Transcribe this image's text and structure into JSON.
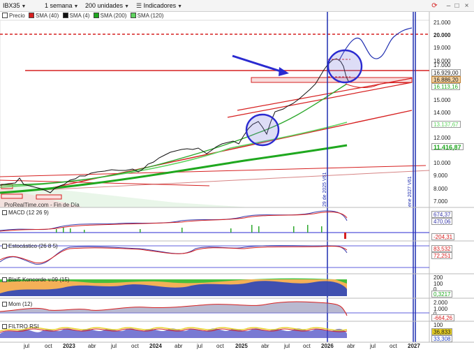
{
  "toolbar": {
    "symbol": "IBX35",
    "period": "1 semana",
    "units": "200 unidades",
    "indicators": "Indicadores"
  },
  "legend": {
    "price": "Precio",
    "sma40": "SMA (40)",
    "sma4": "SMA (4)",
    "sma200": "SMA (200)",
    "sma120": "SMA (120)"
  },
  "price_axis": {
    "ticks": [
      "21.000",
      "20.000",
      "19.000",
      "18.000",
      "17.000",
      "16.929,00",
      "16.886,20",
      "16.113,16",
      "15.000",
      "14.000",
      "13.137,67",
      "12.000",
      "11.416,87",
      "10.000",
      "9.000",
      "8.000",
      "7.000"
    ]
  },
  "source": "ProRealTime.com - Fin de Día",
  "vlines": {
    "v1": "29 de 2025 V61",
    "v2": "ene 2027 V61"
  },
  "panels": {
    "macd": {
      "title": "MACD (12 26 9)",
      "ticks": [
        "674,37",
        "470,06",
        "-204,31"
      ]
    },
    "stoch": {
      "title": "Estocástico (26 8 5)",
      "ticks": [
        "83,532",
        "72,251"
      ]
    },
    "koncorde": {
      "title": "Blai5 Koncorde v.09 (15)",
      "ticks": [
        "200",
        "100",
        "0",
        "0,3217"
      ]
    },
    "mom": {
      "title": "Mom (12)",
      "ticks": [
        "2.000",
        "1.000",
        "0",
        "-664,26"
      ]
    },
    "rsi": {
      "title": "FILTRO RSI",
      "ticks": [
        "100",
        "36,833",
        "33,308"
      ]
    }
  },
  "xaxis": [
    {
      "label": "jul",
      "bold": false
    },
    {
      "label": "oct",
      "bold": false
    },
    {
      "label": "2023",
      "bold": true
    },
    {
      "label": "abr",
      "bold": false
    },
    {
      "label": "jul",
      "bold": false
    },
    {
      "label": "oct",
      "bold": false
    },
    {
      "label": "2024",
      "bold": true
    },
    {
      "label": "abr",
      "bold": false
    },
    {
      "label": "jul",
      "bold": false
    },
    {
      "label": "oct",
      "bold": false
    },
    {
      "label": "2025",
      "bold": true
    },
    {
      "label": "abr",
      "bold": false
    },
    {
      "label": "jul",
      "bold": false
    },
    {
      "label": "oct",
      "bold": false
    },
    {
      "label": "2026",
      "bold": true
    },
    {
      "label": "abr",
      "bold": false
    },
    {
      "label": "jul",
      "bold": false
    },
    {
      "label": "oct",
      "bold": false
    },
    {
      "label": "2027",
      "bold": true
    }
  ],
  "colors": {
    "ma_green": "#1fa81f",
    "ma_light": "#5fd35f",
    "trend_red": "#d62020",
    "vline_blue": "#1f2eb0",
    "highlight": "#2a2ad0"
  }
}
